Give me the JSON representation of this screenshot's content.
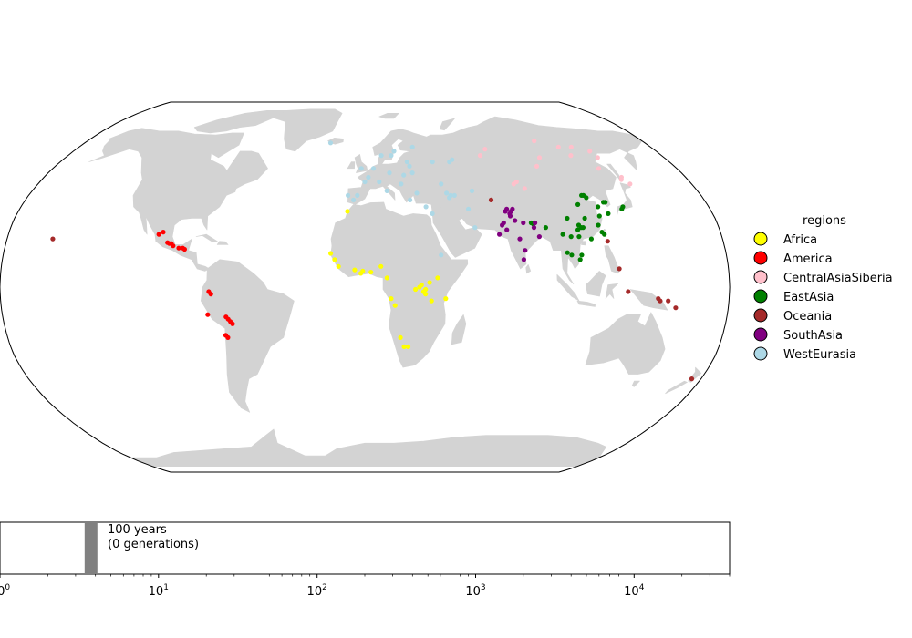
{
  "legend": {
    "title": "regions",
    "items": [
      {
        "label": "Africa",
        "color": "#ffff00"
      },
      {
        "label": "America",
        "color": "#ff0000"
      },
      {
        "label": "CentralAsiaSiberia",
        "color": "#ffc0cb"
      },
      {
        "label": "EastAsia",
        "color": "#008000"
      },
      {
        "label": "Oceania",
        "color": "#a52a2a"
      },
      {
        "label": "SouthAsia",
        "color": "#800080"
      },
      {
        "label": "WestEurasia",
        "color": "#add8e6"
      }
    ]
  },
  "map": {
    "land_color": "#d3d3d3",
    "projection": "Robinson",
    "samples": {
      "Africa": [
        [
          -17,
          14.7
        ],
        [
          -15,
          12
        ],
        [
          -13,
          9
        ],
        [
          -9,
          33
        ],
        [
          -5,
          7.5
        ],
        [
          -2,
          6
        ],
        [
          -1,
          7
        ],
        [
          3,
          6.5
        ],
        [
          8,
          9
        ],
        [
          11,
          4
        ],
        [
          13,
          -5
        ],
        [
          15,
          -8
        ],
        [
          18,
          -22
        ],
        [
          20,
          -26
        ],
        [
          22,
          -26
        ],
        [
          25,
          -1
        ],
        [
          27,
          0
        ],
        [
          28,
          1
        ],
        [
          29,
          -2
        ],
        [
          30,
          -3
        ],
        [
          30,
          -1
        ],
        [
          32,
          2
        ],
        [
          33,
          -6
        ],
        [
          36,
          4
        ],
        [
          40,
          -5
        ]
      ],
      "America": [
        [
          -104,
          23
        ],
        [
          -102,
          24
        ],
        [
          -99,
          19.4
        ],
        [
          -98,
          19
        ],
        [
          -97,
          19
        ],
        [
          -96,
          18
        ],
        [
          -93,
          17
        ],
        [
          -91,
          17
        ],
        [
          -90,
          16.5
        ],
        [
          -77,
          -2
        ],
        [
          -76,
          -3
        ],
        [
          -78,
          -12
        ],
        [
          -69,
          -13
        ],
        [
          -68,
          -14
        ],
        [
          -67,
          -15
        ],
        [
          -66,
          -16
        ],
        [
          -70,
          -21
        ],
        [
          -69,
          -22
        ]
      ],
      "CentralAsiaSiberia": [
        [
          70,
          58
        ],
        [
          75,
          61
        ],
        [
          82,
          45
        ],
        [
          84,
          46
        ],
        [
          87,
          43
        ],
        [
          100,
          53
        ],
        [
          105,
          57
        ],
        [
          110,
          65
        ],
        [
          122,
          62
        ],
        [
          125,
          58
        ],
        [
          130,
          62
        ],
        [
          135,
          52
        ],
        [
          139,
          60
        ],
        [
          140,
          57
        ],
        [
          143,
          47
        ],
        [
          144,
          48
        ],
        [
          146,
          45
        ]
      ],
      "EastAsia": [
        [
          85,
          28
        ],
        [
          86,
          27.5
        ],
        [
          92,
          26
        ],
        [
          100,
          23
        ],
        [
          101,
          15
        ],
        [
          103,
          14
        ],
        [
          104,
          22
        ],
        [
          104,
          30
        ],
        [
          107,
          12
        ],
        [
          108,
          14
        ],
        [
          108,
          22
        ],
        [
          108,
          25
        ],
        [
          109,
          27
        ],
        [
          110,
          26
        ],
        [
          111,
          26
        ],
        [
          112,
          36
        ],
        [
          113,
          30
        ],
        [
          114,
          21
        ],
        [
          116,
          40
        ],
        [
          117,
          40
        ],
        [
          118,
          39
        ],
        [
          119,
          27
        ],
        [
          120,
          24
        ],
        [
          121,
          23
        ],
        [
          121,
          31
        ],
        [
          122,
          35
        ],
        [
          126,
          32
        ],
        [
          126,
          37
        ],
        [
          127,
          37
        ],
        [
          134,
          34
        ],
        [
          135,
          35
        ]
      ],
      "Oceania": [
        [
          -157,
          21
        ],
        [
          67,
          38
        ],
        [
          122,
          20
        ],
        [
          126,
          8
        ],
        [
          130,
          -2
        ],
        [
          145,
          -5
        ],
        [
          146,
          -6
        ],
        [
          150,
          -6
        ],
        [
          154,
          -9
        ],
        [
          175,
          -40
        ]
      ],
      "SouthAsia": [
        [
          68,
          23
        ],
        [
          70,
          27
        ],
        [
          71,
          28
        ],
        [
          72,
          25
        ],
        [
          73,
          33
        ],
        [
          74,
          34
        ],
        [
          75,
          31
        ],
        [
          75,
          32
        ],
        [
          76,
          33
        ],
        [
          77,
          29
        ],
        [
          77,
          34
        ],
        [
          78,
          21
        ],
        [
          79,
          12
        ],
        [
          80,
          16
        ],
        [
          81,
          28
        ],
        [
          86,
          26
        ],
        [
          87,
          28
        ],
        [
          88,
          22
        ]
      ],
      "WestEurasia": [
        [
          -22,
          64
        ],
        [
          -9,
          40
        ],
        [
          -6,
          38
        ],
        [
          -4,
          40
        ],
        [
          -2,
          52
        ],
        [
          0,
          46
        ],
        [
          2,
          48
        ],
        [
          5,
          52
        ],
        [
          8,
          46
        ],
        [
          10,
          58
        ],
        [
          12,
          42
        ],
        [
          14,
          50
        ],
        [
          16,
          58
        ],
        [
          18,
          60
        ],
        [
          20,
          45
        ],
        [
          22,
          49
        ],
        [
          24,
          38
        ],
        [
          25,
          55
        ],
        [
          26,
          53
        ],
        [
          27,
          50
        ],
        [
          28,
          41
        ],
        [
          30,
          62
        ],
        [
          32,
          35
        ],
        [
          35,
          32
        ],
        [
          38,
          14
        ],
        [
          40,
          55
        ],
        [
          42,
          45
        ],
        [
          44,
          41
        ],
        [
          45,
          39
        ],
        [
          46,
          40
        ],
        [
          48,
          40
        ],
        [
          50,
          55
        ],
        [
          52,
          56
        ],
        [
          54,
          34
        ],
        [
          56,
          26
        ],
        [
          58,
          42
        ]
      ]
    }
  },
  "timeline": {
    "xscale": "log",
    "xlim": [
      1,
      40000
    ],
    "marker_years": 100,
    "marker_value": 3.75,
    "label_line1": "100 years",
    "label_line2": "(0 generations)",
    "marker_color": "#808080",
    "tick_labels": [
      {
        "value": 1,
        "base": "10",
        "exp": "0"
      },
      {
        "value": 10,
        "base": "10",
        "exp": "1"
      },
      {
        "value": 100,
        "base": "10",
        "exp": "2"
      },
      {
        "value": 1000,
        "base": "10",
        "exp": "3"
      },
      {
        "value": 10000,
        "base": "10",
        "exp": "4"
      }
    ]
  }
}
